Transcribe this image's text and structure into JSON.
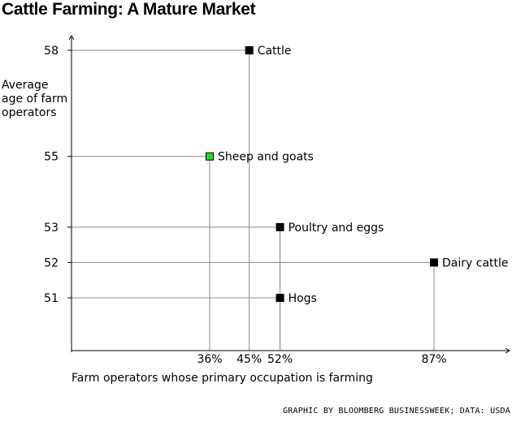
{
  "chart_data": {
    "type": "scatter",
    "title": "Cattle Farming: A Mature Market",
    "xlabel": "Farm operators whose primary occupation is farming",
    "ylabel_lines": [
      "Average",
      "age of farm",
      "operators"
    ],
    "x_ticks": [
      "36%",
      "45%",
      "52%",
      "87%"
    ],
    "y_ticks": [
      "58",
      "55",
      "53",
      "52",
      "51"
    ],
    "points": [
      {
        "label": "Cattle",
        "x": 45,
        "y": 58,
        "color": "#000000"
      },
      {
        "label": "Sheep and goats",
        "x": 36,
        "y": 55,
        "color": "#22dd22"
      },
      {
        "label": "Poultry and eggs",
        "x": 52,
        "y": 53,
        "color": "#000000"
      },
      {
        "label": "Dairy cattle",
        "x": 87,
        "y": 52,
        "color": "#000000"
      },
      {
        "label": "Hogs",
        "x": 52,
        "y": 51,
        "color": "#000000"
      }
    ],
    "xlim": [
      36,
      87
    ],
    "ylim": [
      51,
      58
    ],
    "credit": "GRAPHIC BY BLOOMBERG BUSINESSWEEK; DATA: USDA"
  }
}
